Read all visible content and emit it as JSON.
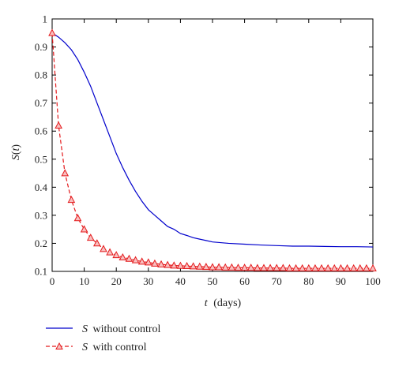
{
  "chart_data": {
    "type": "line",
    "xlabel_var": "t",
    "xlabel_unit": "(days)",
    "ylabel_var": "S",
    "ylabel_arg": "t",
    "xlim": [
      0,
      100
    ],
    "ylim": [
      0.1,
      1.0
    ],
    "x_ticks": [
      "0",
      "10",
      "20",
      "30",
      "40",
      "50",
      "60",
      "70",
      "80",
      "90",
      "100"
    ],
    "y_ticks": [
      "0.1",
      "0.2",
      "0.3",
      "0.4",
      "0.5",
      "0.6",
      "0.7",
      "0.8",
      "0.9",
      "1"
    ],
    "grid": false,
    "legend_position": "bottom-left",
    "series": [
      {
        "name_var": "S",
        "name_text": "without control",
        "color": "#0000cc",
        "style": "solid",
        "marker": "none",
        "x": [
          0,
          2,
          4,
          6,
          8,
          10,
          12,
          14,
          16,
          18,
          20,
          22,
          24,
          26,
          28,
          30,
          32,
          34,
          36,
          38,
          40,
          42,
          44,
          46,
          48,
          50,
          55,
          60,
          65,
          70,
          75,
          80,
          85,
          90,
          95,
          100
        ],
        "y": [
          0.95,
          0.935,
          0.915,
          0.89,
          0.855,
          0.81,
          0.76,
          0.7,
          0.64,
          0.58,
          0.52,
          0.47,
          0.425,
          0.385,
          0.35,
          0.32,
          0.3,
          0.28,
          0.26,
          0.25,
          0.235,
          0.228,
          0.22,
          0.215,
          0.21,
          0.205,
          0.2,
          0.197,
          0.194,
          0.192,
          0.19,
          0.19,
          0.189,
          0.188,
          0.188,
          0.187
        ]
      },
      {
        "name_var": "S",
        "name_text": "with control",
        "color": "#e41a1c",
        "style": "dashed",
        "marker": "triangle",
        "x": [
          0,
          2,
          4,
          6,
          8,
          10,
          12,
          14,
          16,
          18,
          20,
          22,
          24,
          26,
          28,
          30,
          32,
          34,
          36,
          38,
          40,
          42,
          44,
          46,
          48,
          50,
          52,
          54,
          56,
          58,
          60,
          62,
          64,
          66,
          68,
          70,
          72,
          74,
          76,
          78,
          80,
          82,
          84,
          86,
          88,
          90,
          92,
          94,
          96,
          98,
          100
        ],
        "y": [
          0.95,
          0.62,
          0.45,
          0.355,
          0.29,
          0.25,
          0.22,
          0.2,
          0.18,
          0.168,
          0.158,
          0.15,
          0.145,
          0.14,
          0.135,
          0.132,
          0.128,
          0.125,
          0.123,
          0.121,
          0.12,
          0.119,
          0.118,
          0.117,
          0.116,
          0.115,
          0.115,
          0.114,
          0.114,
          0.113,
          0.113,
          0.113,
          0.112,
          0.112,
          0.112,
          0.112,
          0.112,
          0.111,
          0.111,
          0.111,
          0.111,
          0.111,
          0.111,
          0.111,
          0.111,
          0.111,
          0.111,
          0.111,
          0.111,
          0.111,
          0.111
        ]
      }
    ]
  }
}
